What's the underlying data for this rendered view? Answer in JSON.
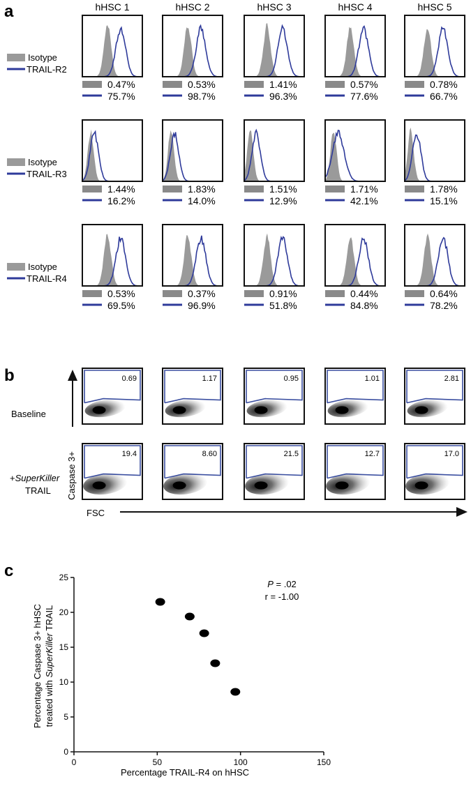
{
  "panel_a": {
    "letter": "a",
    "columns": [
      "hHSC 1",
      "hHSC 2",
      "hHSC 3",
      "hHSC 4",
      "hHSC 5"
    ],
    "legend_isotype": "Isotype",
    "rows": [
      {
        "receptor": "TRAIL-R2",
        "isotype": [
          "0.47%",
          "0.53%",
          "1.41%",
          "0.57%",
          "0.78%"
        ],
        "trail": [
          "75.7%",
          "98.7%",
          "96.3%",
          "77.6%",
          "66.7%"
        ]
      },
      {
        "receptor": "TRAIL-R3",
        "isotype": [
          "1.44%",
          "1.83%",
          "1.51%",
          "1.71%",
          "1.78%"
        ],
        "trail": [
          "16.2%",
          "14.0%",
          "12.9%",
          "42.1%",
          "15.1%"
        ]
      },
      {
        "receptor": "TRAIL-R4",
        "isotype": [
          "0.53%",
          "0.37%",
          "0.91%",
          "0.44%",
          "0.64%"
        ],
        "trail": [
          "69.5%",
          "96.9%",
          "51.8%",
          "84.8%",
          "78.2%"
        ]
      }
    ]
  },
  "panel_b": {
    "letter": "b",
    "y_axis": "Caspase 3+",
    "x_axis": "FSC",
    "row_baseline": "Baseline",
    "row_treated_prefix": "+",
    "row_treated_italic": "SuperKiller",
    "row_treated_suffix": "TRAIL",
    "baseline_values": [
      "0.69",
      "1.17",
      "0.95",
      "1.01",
      "2.81"
    ],
    "treated_values": [
      "19.4",
      "8.60",
      "21.5",
      "12.7",
      "17.0"
    ]
  },
  "chart_data": {
    "type": "scatter",
    "letter": "c",
    "xlabel": "Percentage TRAIL-R4 on hHSC",
    "ylabel_line1": "Percentage Caspase 3+ hHSC",
    "ylabel_line2_prefix": "treated with ",
    "ylabel_line2_italic": "SuperKiller",
    "ylabel_line2_suffix": " TRAIL",
    "xlim": [
      0,
      150
    ],
    "ylim": [
      0,
      25
    ],
    "xticks": [
      "0",
      "50",
      "100",
      "150"
    ],
    "yticks": [
      "0",
      "5",
      "10",
      "15",
      "20",
      "25"
    ],
    "points": [
      {
        "x": 51.8,
        "y": 21.5
      },
      {
        "x": 69.5,
        "y": 19.4
      },
      {
        "x": 78.2,
        "y": 17.0
      },
      {
        "x": 84.8,
        "y": 12.7
      },
      {
        "x": 96.9,
        "y": 8.6
      }
    ],
    "stat_p_italic": "P",
    "stat_p_rest": " = .02",
    "stat_r": "r = -1.00"
  },
  "colors": {
    "trail": "#2e3a9a",
    "isotype": "#9a9a9a",
    "isotype_bar": "#8a8a8a",
    "gate": "#3a4ea0"
  }
}
